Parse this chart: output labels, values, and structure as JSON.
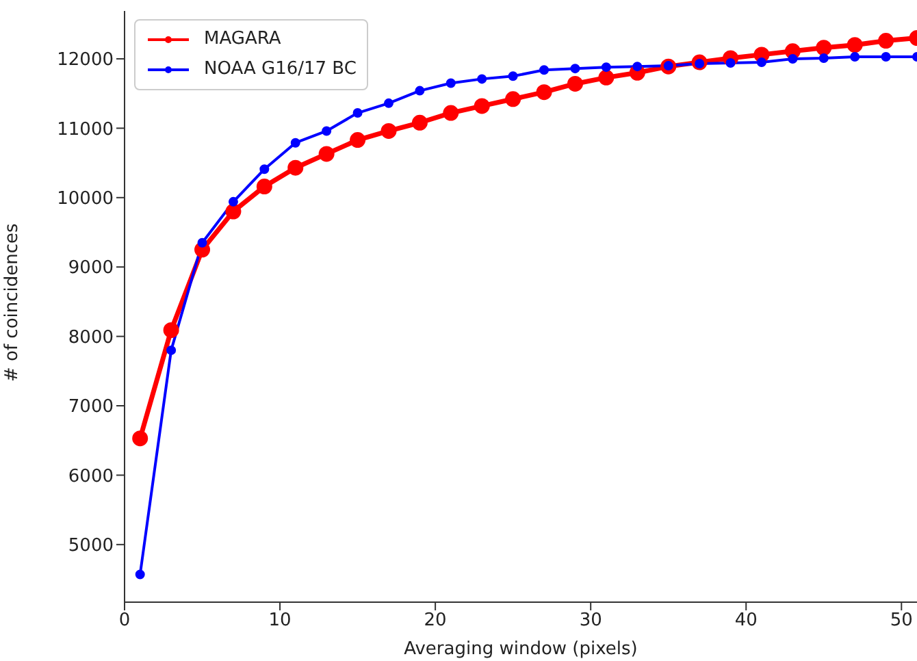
{
  "chart_data": {
    "type": "line",
    "xlabel": "Averaging window (pixels)",
    "ylabel": "# of coincidences",
    "x": [
      1,
      3,
      5,
      7,
      9,
      11,
      13,
      15,
      17,
      19,
      21,
      23,
      25,
      27,
      29,
      31,
      33,
      35,
      37,
      39,
      41,
      43,
      45,
      47,
      49,
      51
    ],
    "series": [
      {
        "name": "MAGARA",
        "color": "#ff0000",
        "values": [
          6530,
          8090,
          9250,
          9800,
          10160,
          10430,
          10630,
          10830,
          10960,
          11080,
          11220,
          11320,
          11420,
          11520,
          11640,
          11730,
          11800,
          11890,
          11950,
          12010,
          12060,
          12110,
          12160,
          12200,
          12260,
          12300
        ]
      },
      {
        "name": "NOAA G16/17 BC",
        "color": "#0000ff",
        "values": [
          4570,
          7800,
          9350,
          9940,
          10410,
          10790,
          10960,
          11220,
          11360,
          11540,
          11650,
          11710,
          11750,
          11840,
          11860,
          11880,
          11890,
          11900,
          11930,
          11940,
          11950,
          12000,
          12010,
          12030,
          12030,
          12030
        ]
      }
    ],
    "xlim": [
      0,
      51
    ],
    "ylim": [
      4170,
      12690
    ],
    "xticks": [
      0,
      10,
      20,
      30,
      40,
      50
    ],
    "yticks": [
      5000,
      6000,
      7000,
      8000,
      9000,
      10000,
      11000,
      12000
    ],
    "legend": "top left",
    "marker": "circle",
    "line_style": "solid",
    "grid": false
  }
}
